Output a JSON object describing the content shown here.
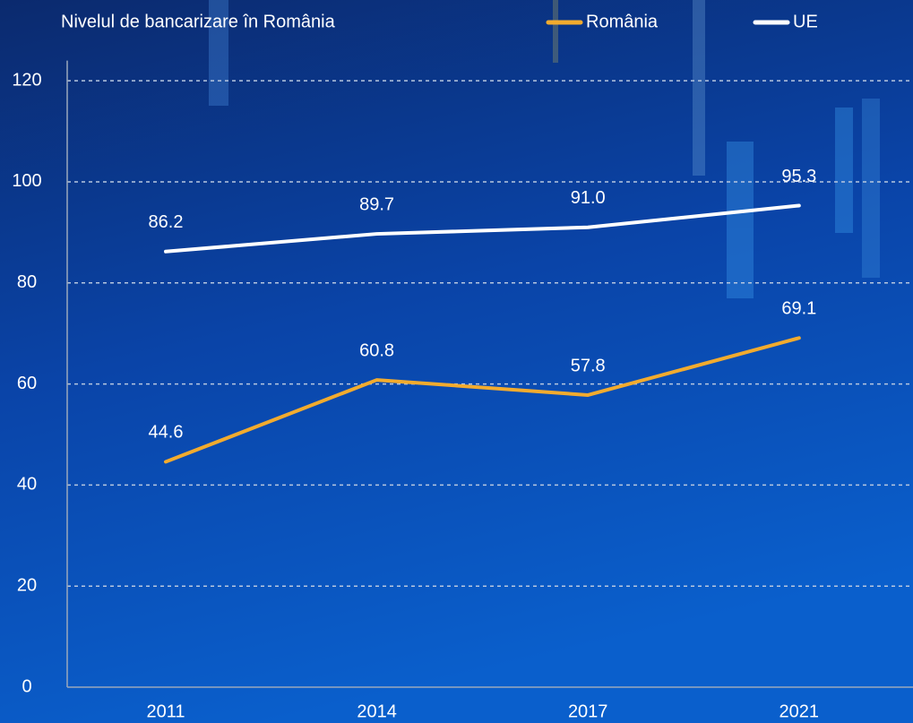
{
  "chart_data": {
    "type": "line",
    "title": "Nivelul de bancarizare în România",
    "categories": [
      "2011",
      "2014",
      "2017",
      "2021"
    ],
    "series": [
      {
        "name": "România",
        "color": "#f2ab2e",
        "values": [
          44.6,
          60.8,
          57.8,
          69.1
        ],
        "value_labels": [
          "44.6",
          "60.8",
          "57.8",
          "69.1"
        ]
      },
      {
        "name": "UE",
        "color": "#ffffff",
        "values": [
          86.2,
          89.7,
          91,
          95.3
        ],
        "value_labels": [
          "86.2",
          "89.7",
          "91.0",
          "95.3"
        ]
      }
    ],
    "ylim": [
      0,
      124
    ],
    "yticks": [
      0,
      20,
      40,
      60,
      80,
      100,
      120
    ],
    "grid": true,
    "legend": "top"
  }
}
